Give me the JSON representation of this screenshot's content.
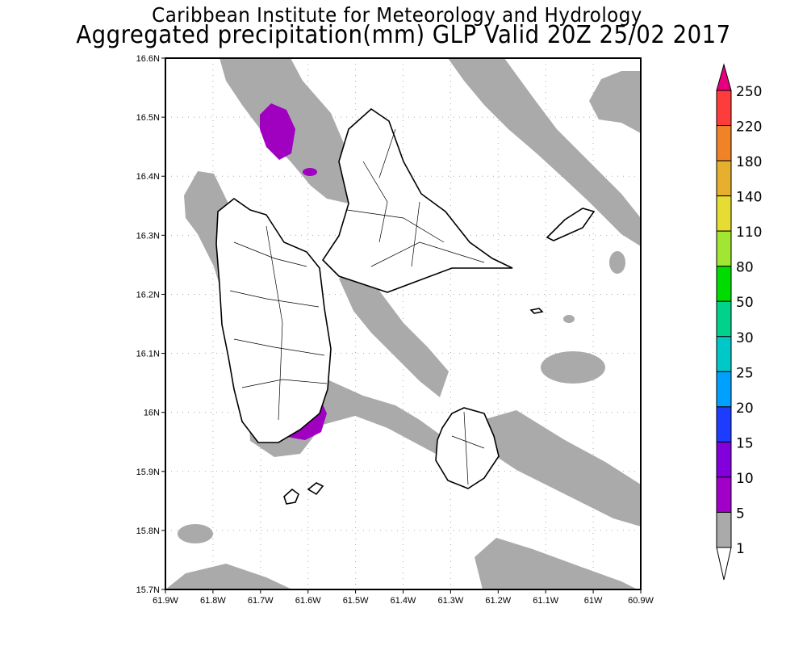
{
  "header": {
    "title_line1": "Caribbean Institute for Meteorology and Hydrology",
    "title_line2": "Aggregated precipitation(mm) GLP Valid 20Z 25/02 2017"
  },
  "map": {
    "lon_ticks": [
      "61.9W",
      "61.8W",
      "61.7W",
      "61.6W",
      "61.5W",
      "61.4W",
      "61.3W",
      "61.2W",
      "61.1W",
      "61W",
      "60.9W"
    ],
    "lat_ticks": [
      "16.6N",
      "16.5N",
      "16.4N",
      "16.3N",
      "16.2N",
      "16.1N",
      "16N",
      "15.9N",
      "15.8N",
      "15.7N"
    ],
    "fill_colors": {
      "1-5": "#a9a9a9",
      "5-10": "#a000c0"
    }
  },
  "colorbar": {
    "labels": [
      "250",
      "220",
      "180",
      "140",
      "110",
      "80",
      "50",
      "30",
      "25",
      "20",
      "15",
      "10",
      "5",
      "1"
    ],
    "over_color": "#e6007e",
    "under_color": "#ffffff",
    "colors": [
      "#ff3c3c",
      "#f08228",
      "#e6af2d",
      "#e6dc32",
      "#a0e632",
      "#00dc00",
      "#00d28c",
      "#00c8c8",
      "#00a0ff",
      "#1e3cff",
      "#8200dc",
      "#a000c8",
      "#aaaaaa"
    ]
  }
}
